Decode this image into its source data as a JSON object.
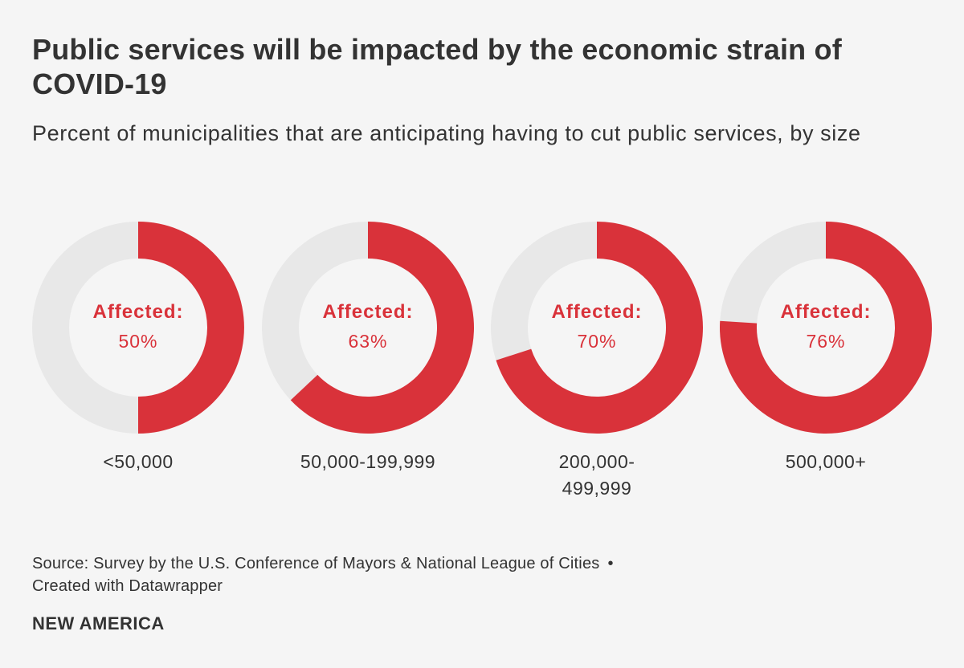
{
  "header": {
    "title": "Public services will be impacted by the economic strain of COVID-19",
    "subtitle": "Percent of municipalities that are anticipating having to cut public services, by size"
  },
  "colors": {
    "affected": "#d9323a",
    "remainder": "#e8e8e8",
    "background": "#f5f5f5",
    "text": "#333333"
  },
  "chart_data": {
    "type": "pie",
    "variant": "donut",
    "title": "Public services will be impacted by the economic strain of COVID-19",
    "subtitle": "Percent of municipalities that are anticipating having to cut public services, by size",
    "center_label": "Affected:",
    "unit": "%",
    "categories": [
      "<50,000",
      "50,000-199,999",
      "200,000-499,999",
      "500,000+"
    ],
    "category_lines": [
      [
        "<50,000"
      ],
      [
        "50,000-199,999"
      ],
      [
        "200,000-",
        "499,999"
      ],
      [
        "500,000+"
      ]
    ],
    "values": [
      50,
      63,
      70,
      76
    ]
  },
  "footer": {
    "source": "Source: Survey by the U.S. Conference of Mayors & National League of Cities",
    "separator": "•",
    "credit": "Created with Datawrapper",
    "brand": "NEW AMERICA"
  }
}
